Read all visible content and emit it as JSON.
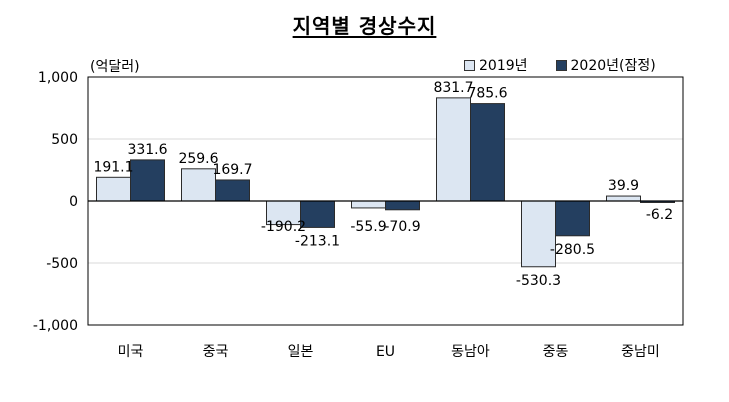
{
  "chart_data": {
    "type": "bar",
    "title": "지역별 경상수지",
    "unit_label": "(억달러)",
    "categories": [
      "미국",
      "중국",
      "일본",
      "EU",
      "동남아",
      "중동",
      "중남미"
    ],
    "series": [
      {
        "name": "2019년",
        "values": [
          191.1,
          259.6,
          -190.2,
          -55.9,
          831.7,
          -530.3,
          39.9
        ]
      },
      {
        "name": "2020년(잠정)",
        "values": [
          331.6,
          169.7,
          -213.1,
          -70.9,
          785.6,
          -280.5,
          -6.2
        ]
      }
    ],
    "value_labels": [
      [
        "191.1",
        "259.6",
        "-190.2",
        "-55.9",
        "831.7",
        "-530.3",
        "39.9"
      ],
      [
        "331.6",
        "169.7",
        "-213.1",
        "-70.9",
        "785.6",
        "-280.5",
        "-6.2"
      ]
    ],
    "ylim": [
      -1000,
      1000
    ],
    "yticks": [
      1000,
      500,
      0,
      -500,
      -1000
    ],
    "ytick_labels": [
      "1,000",
      "500",
      "0",
      "-500",
      "-1,000"
    ],
    "grid": true,
    "legend_position": "top-right",
    "colors": {
      "series_0": "#dce6f2",
      "series_1": "#243f60",
      "bar_border": "#2b2b2b",
      "grid": "#d9d9d9"
    }
  }
}
